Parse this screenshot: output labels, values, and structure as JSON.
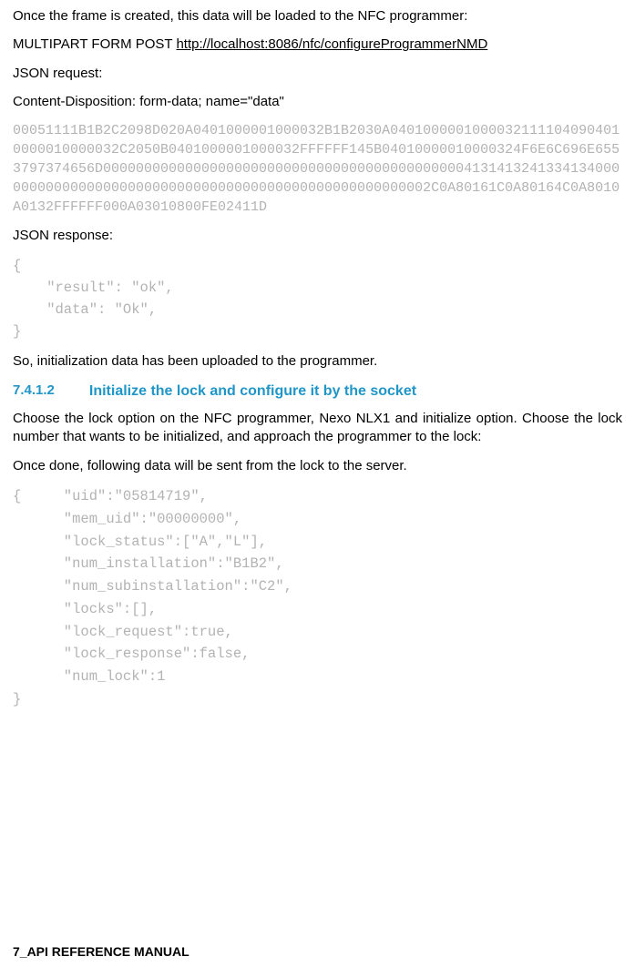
{
  "intro": {
    "p1": "Once the frame is created, this data will be loaded to the NFC programmer:",
    "post_prefix": "MULTIPART FORM POST ",
    "post_url": "http://localhost:8086/nfc/configureProgrammerNMD",
    "json_request_label": "JSON request:",
    "content_disposition": "Content-Disposition: form-data; name=\"data\"",
    "hex_payload": "00051111B1B2C2098D020A0401000001000032B1B2030A04010000010000321111040904010000010000032C2050B0401000001000032FFFFFF145B04010000010000324F6E6C696E6553797374656D000000000000000000000000000000000000000000004131413241334134000000000000000000000000000000000000000000000000000002C0A80161C0A80164C0A8010A0132FFFFFF000A03010800FE02411D",
    "json_response_label": "JSON response:",
    "json_response_body": "{\n    \"result\": \"ok\",\n    \"data\": \"Ok\",\n}",
    "p2": "So, initialization data has been uploaded to the programmer."
  },
  "section": {
    "number": "7.4.1.2",
    "title": "Initialize the lock and configure it by the socket",
    "p1": "Choose the lock option on the NFC programmer, Nexo NLX1 and initialize option. Choose the lock number that wants to be initialized, and approach the programmer to the lock:",
    "p2": "Once done, following data will be sent from the lock to the server.",
    "code": "{     \"uid\":\"05814719\",\n      \"mem_uid\":\"00000000\",\n      \"lock_status\":[\"A\",\"L\"],\n      \"num_installation\":\"B1B2\",\n      \"num_subinstallation\":\"C2\",\n      \"locks\":[],\n      \"lock_request\":true,\n      \"lock_response\":false,\n      \"num_lock\":1\n}"
  },
  "footer": "7_API REFERENCE MANUAL"
}
